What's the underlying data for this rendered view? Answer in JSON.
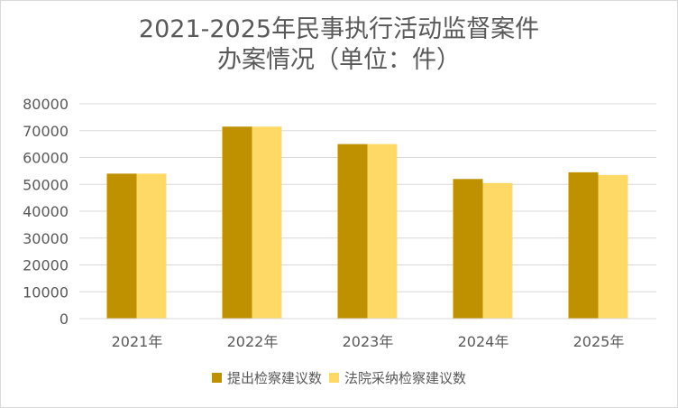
{
  "colors": {
    "series1": "#BF9000",
    "series2": "#FFD966",
    "grid": "#d9d9d9",
    "text": "#595959"
  },
  "chart_data": {
    "type": "bar",
    "title_line1": "2021-2025年民事执行活动监督案件",
    "title_line2": "办案情况（单位：件）",
    "categories": [
      "2021年",
      "2022年",
      "2023年",
      "2024年",
      "2025年"
    ],
    "series": [
      {
        "name": "提出检察建议数",
        "values": [
          54000,
          71500,
          65000,
          52000,
          54500
        ]
      },
      {
        "name": "法院采纳检察建议数",
        "values": [
          54000,
          71500,
          65000,
          50500,
          53500
        ]
      }
    ],
    "yticks": [
      "0",
      "10000",
      "20000",
      "30000",
      "40000",
      "50000",
      "60000",
      "70000",
      "80000"
    ],
    "ylim": [
      0,
      80000
    ],
    "grid": true,
    "legend_position": "bottom"
  }
}
